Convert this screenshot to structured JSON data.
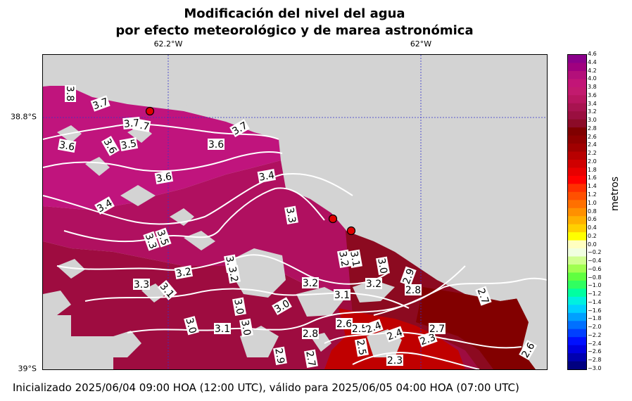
{
  "title_line1": "Modificación del nivel del agua",
  "title_line2": "por efecto meteorológico y de marea astronómica",
  "lon_labels": [
    "62.2°W",
    "62°W"
  ],
  "lat_labels": [
    "38.8°S",
    "39°S"
  ],
  "colorbar": {
    "label": "metros",
    "min": -3.0,
    "max": 4.6,
    "step": 0.2,
    "ticks": [
      "4.6",
      "4.4",
      "4.2",
      "4.0",
      "3.8",
      "3.6",
      "3.4",
      "3.2",
      "3.0",
      "2.8",
      "2.6",
      "2.4",
      "2.2",
      "2.0",
      "1.8",
      "1.6",
      "1.4",
      "1.2",
      "1.0",
      "0.8",
      "0.6",
      "0.4",
      "0.2",
      "0.0",
      "−0.2",
      "−0.4",
      "−0.6",
      "−0.8",
      "−1.0",
      "−1.2",
      "−1.4",
      "−1.6",
      "−1.8",
      "−2.0",
      "−2.2",
      "−2.4",
      "−2.6",
      "−2.8",
      "−3.0"
    ]
  },
  "contour_labels": [
    "3.8",
    "3.7",
    "3.6",
    "3.6",
    "3.6",
    "3.4",
    "3.3",
    "3.5",
    "3.3",
    "3.5",
    "3.7",
    "3.7",
    "3.6",
    "3.4",
    "3.3",
    "3.2",
    "3.1",
    "3.0",
    "3.2",
    "3.1",
    "3.2",
    "3.1",
    "3.2",
    "2.9",
    "2.8",
    "2.7",
    "3.0",
    "3.1",
    "3.0",
    "3.0",
    "2.9",
    "2.8",
    "2.7",
    "2.6",
    "2.5",
    "2.4",
    "2.4",
    "2.3",
    "2.3",
    "2.7",
    "2.6",
    "2.5",
    "3.1",
    "3.2",
    "3.0",
    "3.7"
  ],
  "markers": [
    {
      "name": "station-1"
    },
    {
      "name": "station-2"
    },
    {
      "name": "station-3"
    }
  ],
  "colors": {
    "land": "#d3d3d3",
    "level_38": "#c0147d",
    "level_35": "#b01060",
    "level_32": "#9e0c40",
    "level_30": "#8c0a20",
    "level_28": "#820000",
    "level_25": "#c00000",
    "marker": "#e00000"
  },
  "footer": "Inicializado 2025/06/04 09:00 HOA (12:00 UTC), válido para 2025/06/05 04:00 HOA (07:00 UTC)"
}
